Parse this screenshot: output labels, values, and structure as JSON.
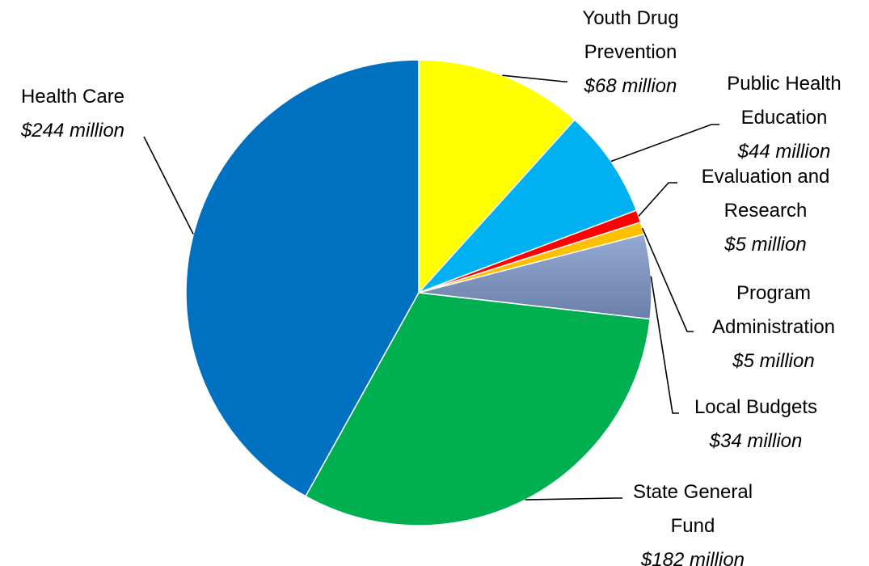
{
  "chart_data": {
    "type": "pie",
    "title": "",
    "slices": [
      {
        "name": "Youth Drug Prevention",
        "lines": [
          "Youth Drug",
          "Prevention"
        ],
        "value": 68,
        "value_label": "$68 million",
        "color": "#FFFF00"
      },
      {
        "name": "Public Health Education",
        "lines": [
          "Public Health",
          "Education"
        ],
        "value": 44,
        "value_label": "$44 million",
        "color": "#00B0F0"
      },
      {
        "name": "Evaluation and Research",
        "lines": [
          "Evaluation and",
          "Research"
        ],
        "value": 5,
        "value_label": "$5 million",
        "color": "#FF0000"
      },
      {
        "name": "Program Administration",
        "lines": [
          "Program",
          "Administration"
        ],
        "value": 5,
        "value_label": "$5 million",
        "color": "#FFC000"
      },
      {
        "name": "Local Budgets",
        "lines": [
          "Local Budgets"
        ],
        "value": 34,
        "value_label": "$34 million",
        "color": "#7F96BD"
      },
      {
        "name": "State General Fund",
        "lines": [
          "State General",
          "Fund"
        ],
        "value": 182,
        "value_label": "$182 million",
        "color": "#00B050"
      },
      {
        "name": "Health Care",
        "lines": [
          "Health Care"
        ],
        "value": 244,
        "value_label": "$244 million",
        "color": "#0070C0"
      }
    ],
    "start": "12 o'clock",
    "direction": "clockwise",
    "legend": "none",
    "labels": "outside with leader lines"
  }
}
